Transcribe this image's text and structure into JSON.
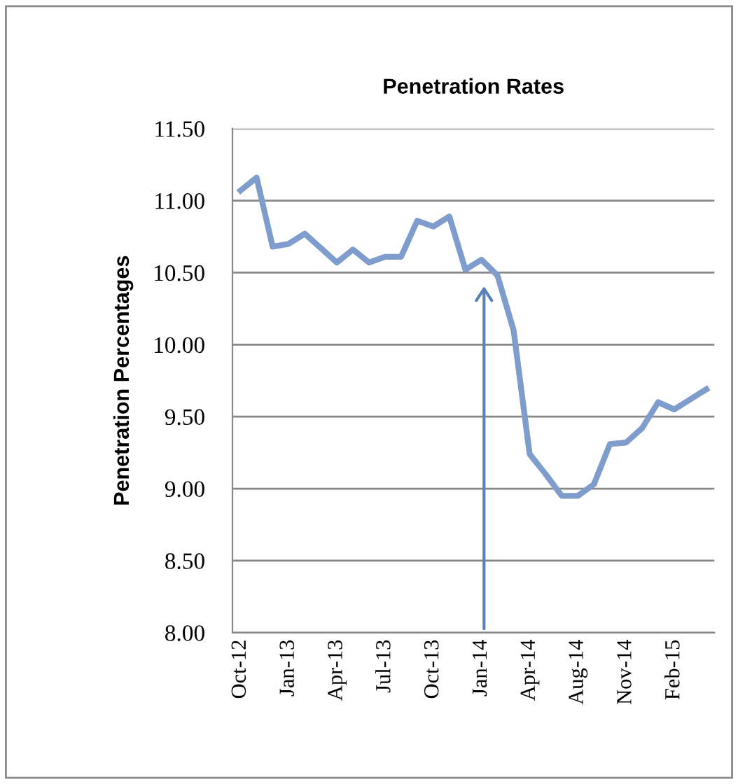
{
  "chart_data": {
    "type": "line",
    "title": "Penetration Rates",
    "ylabel": "Penetration Percentages",
    "categories": [
      "Oct-12",
      null,
      null,
      "Jan-13",
      null,
      null,
      "Apr-13",
      null,
      null,
      "Jul-13",
      null,
      null,
      "Oct-13",
      null,
      null,
      "Jan-14",
      null,
      null,
      "Apr-14",
      null,
      null,
      "Aug-14",
      null,
      null,
      "Nov-14",
      null,
      null,
      "Feb-15",
      null,
      null
    ],
    "series": [
      {
        "color": "#7f9dcc",
        "values": [
          11.07,
          11.16,
          10.68,
          10.7,
          10.77,
          10.67,
          10.57,
          10.66,
          10.57,
          10.61,
          10.61,
          10.86,
          10.82,
          10.89,
          10.52,
          10.59,
          10.48,
          10.1,
          9.24,
          9.1,
          8.95,
          8.95,
          9.03,
          9.31,
          9.32,
          9.42,
          9.6,
          9.55,
          9.62,
          9.69
        ]
      }
    ],
    "ylim": [
      8.0,
      11.5
    ],
    "yticks": [
      {
        "value": 8.0,
        "label": "8.00"
      },
      {
        "value": 8.5,
        "label": "8.50"
      },
      {
        "value": 9.0,
        "label": "9.00"
      },
      {
        "value": 9.5,
        "label": "9.50"
      },
      {
        "value": 10.0,
        "label": "10.00"
      },
      {
        "value": 10.5,
        "label": "10.50"
      },
      {
        "value": 11.0,
        "label": "11.00"
      },
      {
        "value": 11.5,
        "label": "11.50"
      }
    ],
    "grid": "y",
    "legend": false,
    "marker": "none",
    "line_style": "solid"
  }
}
